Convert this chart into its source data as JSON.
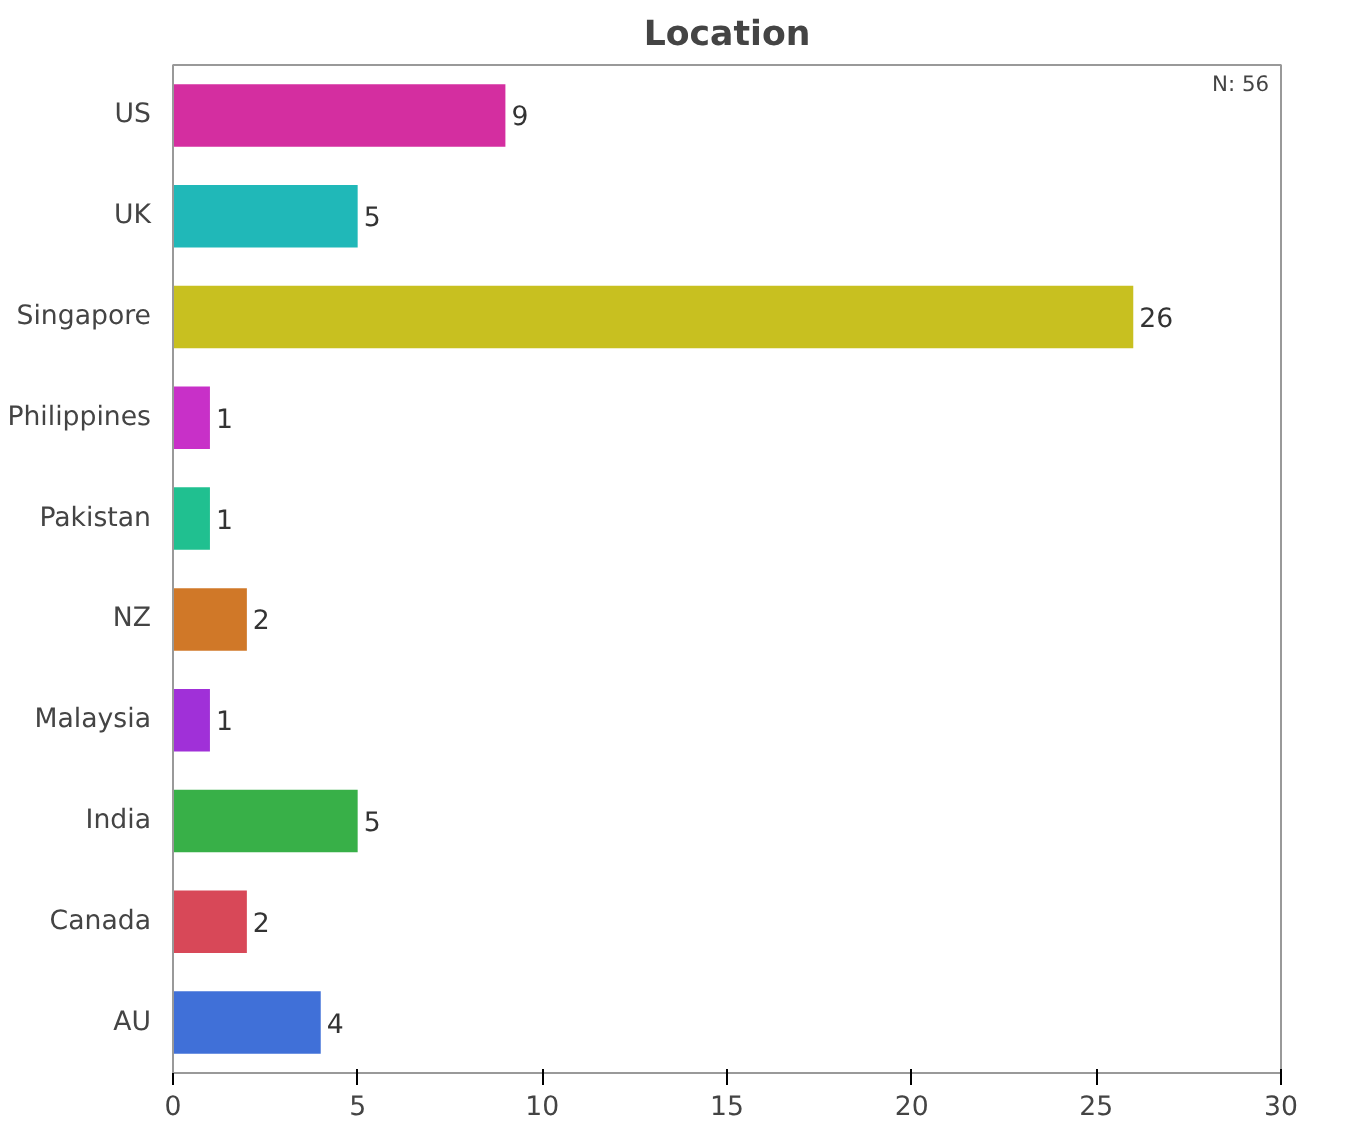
{
  "chart_data": {
    "type": "bar",
    "orientation": "horizontal",
    "title": "Location",
    "categories": [
      "US",
      "UK",
      "Singapore",
      "Philippines",
      "Pakistan",
      "NZ",
      "Malaysia",
      "India",
      "Canada",
      "AU"
    ],
    "values": [
      9,
      5,
      26,
      1,
      1,
      2,
      1,
      5,
      2,
      4
    ],
    "colors": [
      "#d42ea0",
      "#20b8b8",
      "#c8c020",
      "#c830c8",
      "#20c090",
      "#d07828",
      "#a030d8",
      "#38b048",
      "#d84858",
      "#4070d8"
    ],
    "xlim": [
      0,
      30
    ],
    "xticks": [
      0,
      5,
      10,
      15,
      20,
      25,
      30
    ],
    "data_labels": true,
    "grid": false,
    "annotations": [
      "N: 56"
    ]
  }
}
